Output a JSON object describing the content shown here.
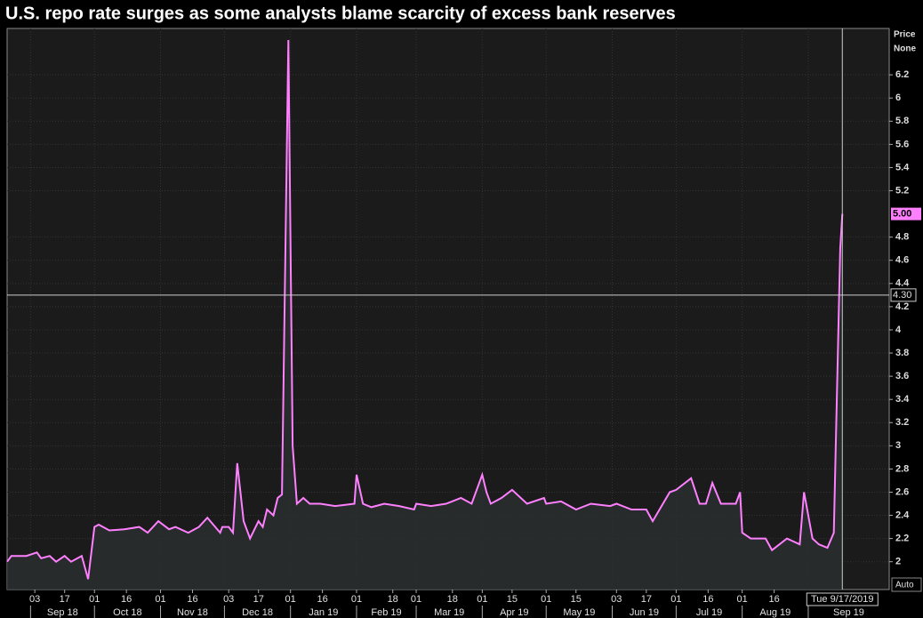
{
  "chart_data": {
    "type": "line",
    "title": "U.S. repo rate surges as some analysts blame scarcity of excess bank reserves",
    "ylabel": "Price",
    "currency": "None",
    "scale_button": "Auto",
    "grid": true,
    "xlim": [
      "2018-08-21",
      "2019-10-09"
    ],
    "ylim": [
      1.76,
      6.6
    ],
    "yticks": [
      2,
      2.2,
      2.4,
      2.6,
      2.8,
      3,
      3.2,
      3.4,
      3.6,
      3.8,
      4,
      4.2,
      4.4,
      4.6,
      4.8,
      5.2,
      5.4,
      5.6,
      5.8,
      6,
      6.2
    ],
    "xticks": [
      {
        "value": "2018-09-03",
        "label": "03"
      },
      {
        "value": "2018-09-17",
        "label": "17"
      },
      {
        "value": "2018-10-01",
        "label": "01"
      },
      {
        "value": "2018-10-16",
        "label": "16"
      },
      {
        "value": "2018-11-01",
        "label": "01"
      },
      {
        "value": "2018-11-16",
        "label": "16"
      },
      {
        "value": "2018-12-03",
        "label": "03"
      },
      {
        "value": "2018-12-17",
        "label": "17"
      },
      {
        "value": "2019-01-01",
        "label": "01"
      },
      {
        "value": "2019-01-16",
        "label": "16"
      },
      {
        "value": "2019-02-01",
        "label": "01"
      },
      {
        "value": "2019-02-18",
        "label": "18"
      },
      {
        "value": "2019-03-01",
        "label": "01"
      },
      {
        "value": "2019-03-18",
        "label": "18"
      },
      {
        "value": "2019-04-01",
        "label": "01"
      },
      {
        "value": "2019-04-15",
        "label": "15"
      },
      {
        "value": "2019-05-01",
        "label": "01"
      },
      {
        "value": "2019-05-15",
        "label": "15"
      },
      {
        "value": "2019-06-03",
        "label": "03"
      },
      {
        "value": "2019-06-17",
        "label": "17"
      },
      {
        "value": "2019-07-01",
        "label": "01"
      },
      {
        "value": "2019-07-16",
        "label": "16"
      },
      {
        "value": "2019-08-01",
        "label": "01"
      },
      {
        "value": "2019-08-16",
        "label": "16"
      }
    ],
    "months": [
      {
        "value": "2018-09-01",
        "label": "Sep 18"
      },
      {
        "value": "2018-10-01",
        "label": "Oct 18"
      },
      {
        "value": "2018-11-01",
        "label": "Nov 18"
      },
      {
        "value": "2018-12-01",
        "label": "Dec 18"
      },
      {
        "value": "2019-01-01",
        "label": "Jan 19"
      },
      {
        "value": "2019-02-01",
        "label": "Feb 19"
      },
      {
        "value": "2019-03-01",
        "label": "Mar 19"
      },
      {
        "value": "2019-04-01",
        "label": "Apr 19"
      },
      {
        "value": "2019-05-01",
        "label": "May 19"
      },
      {
        "value": "2019-06-01",
        "label": "Jun 19"
      },
      {
        "value": "2019-07-01",
        "label": "Jul 19"
      },
      {
        "value": "2019-08-01",
        "label": "Aug 19"
      },
      {
        "value": "2019-09-01",
        "label": "Sep 19"
      }
    ],
    "crosshair": {
      "y": {
        "value": 4.3,
        "label": "4.30"
      },
      "x": {
        "value": "2019-09-17",
        "label": "Tue 9/17/2019"
      }
    },
    "last_value_label": "5.00",
    "x": [
      "2018-08-21",
      "2018-08-23",
      "2018-08-27",
      "2018-08-30",
      "2018-09-04",
      "2018-09-06",
      "2018-09-10",
      "2018-09-13",
      "2018-09-17",
      "2018-09-20",
      "2018-09-25",
      "2018-09-28",
      "2018-10-01",
      "2018-10-03",
      "2018-10-08",
      "2018-10-15",
      "2018-10-22",
      "2018-10-26",
      "2018-10-31",
      "2018-11-05",
      "2018-11-08",
      "2018-11-14",
      "2018-11-19",
      "2018-11-23",
      "2018-11-29",
      "2018-11-30",
      "2018-12-03",
      "2018-12-05",
      "2018-12-07",
      "2018-12-10",
      "2018-12-13",
      "2018-12-17",
      "2018-12-19",
      "2018-12-21",
      "2018-12-24",
      "2018-12-26",
      "2018-12-28",
      "2018-12-31",
      "2019-01-02",
      "2019-01-04",
      "2019-01-07",
      "2019-01-10",
      "2019-01-15",
      "2019-01-22",
      "2019-01-31",
      "2019-02-01",
      "2019-02-04",
      "2019-02-08",
      "2019-02-14",
      "2019-02-21",
      "2019-02-28",
      "2019-03-01",
      "2019-03-08",
      "2019-03-15",
      "2019-03-22",
      "2019-03-27",
      "2019-04-01",
      "2019-04-03",
      "2019-04-05",
      "2019-04-10",
      "2019-04-15",
      "2019-04-22",
      "2019-04-30",
      "2019-05-01",
      "2019-05-08",
      "2019-05-15",
      "2019-05-22",
      "2019-05-31",
      "2019-06-03",
      "2019-06-10",
      "2019-06-17",
      "2019-06-20",
      "2019-06-28",
      "2019-07-01",
      "2019-07-08",
      "2019-07-12",
      "2019-07-15",
      "2019-07-18",
      "2019-07-22",
      "2019-07-29",
      "2019-07-31",
      "2019-08-01",
      "2019-08-05",
      "2019-08-12",
      "2019-08-15",
      "2019-08-22",
      "2019-08-28",
      "2019-08-30",
      "2019-09-03",
      "2019-09-06",
      "2019-09-10",
      "2019-09-13",
      "2019-09-16",
      "2019-09-17"
    ],
    "series": [
      {
        "name": "Repo rate",
        "color": "#ff80ff",
        "values": [
          2.0,
          2.05,
          2.05,
          2.05,
          2.08,
          2.03,
          2.05,
          2.0,
          2.05,
          2.0,
          2.05,
          1.85,
          2.3,
          2.32,
          2.27,
          2.28,
          2.3,
          2.25,
          2.35,
          2.28,
          2.3,
          2.25,
          2.3,
          2.38,
          2.25,
          2.3,
          2.3,
          2.25,
          2.85,
          2.35,
          2.2,
          2.35,
          2.3,
          2.45,
          2.4,
          2.55,
          2.58,
          6.5,
          3.0,
          2.5,
          2.55,
          2.5,
          2.5,
          2.48,
          2.5,
          2.75,
          2.5,
          2.47,
          2.5,
          2.48,
          2.45,
          2.5,
          2.48,
          2.5,
          2.55,
          2.5,
          2.75,
          2.6,
          2.5,
          2.55,
          2.62,
          2.5,
          2.55,
          2.5,
          2.52,
          2.45,
          2.5,
          2.48,
          2.5,
          2.45,
          2.45,
          2.35,
          2.6,
          2.62,
          2.72,
          2.5,
          2.5,
          2.68,
          2.5,
          2.5,
          2.6,
          2.25,
          2.2,
          2.2,
          2.1,
          2.2,
          2.15,
          2.6,
          2.2,
          2.15,
          2.12,
          2.25,
          4.7,
          5.0
        ]
      }
    ]
  }
}
